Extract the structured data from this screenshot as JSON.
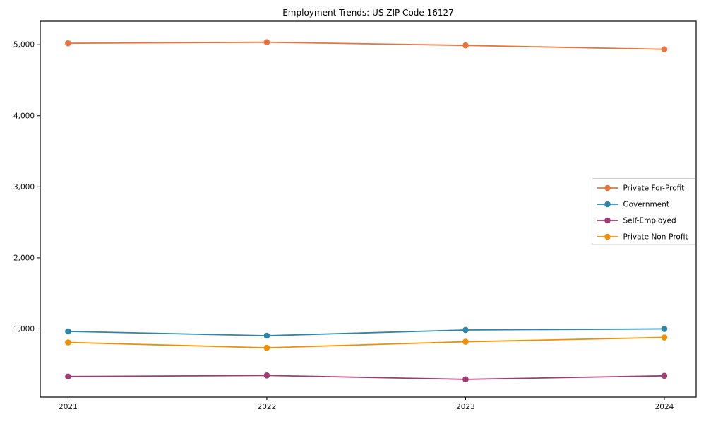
{
  "chart_data": {
    "type": "line",
    "title": "Employment Trends: US ZIP Code 16127",
    "x": [
      2021,
      2022,
      2023,
      2024
    ],
    "x_tick_labels": [
      "2021",
      "2022",
      "2023",
      "2024"
    ],
    "y_ticks": [
      1000,
      2000,
      3000,
      4000,
      5000
    ],
    "y_tick_labels": [
      "1,000",
      "2,000",
      "3,000",
      "4,000",
      "5,000"
    ],
    "xlim": [
      2020.86,
      2024.16
    ],
    "ylim": [
      40,
      5330
    ],
    "grid": false,
    "legend_position": "center right",
    "series": [
      {
        "name": "Private For-Profit",
        "color": "#E8743D",
        "values": [
          5020,
          5035,
          4990,
          4935
        ]
      },
      {
        "name": "Government",
        "color": "#2E86AB",
        "values": [
          965,
          905,
          985,
          1000
        ]
      },
      {
        "name": "Self-Employed",
        "color": "#A23B72",
        "values": [
          330,
          345,
          290,
          340
        ]
      },
      {
        "name": "Private Non-Profit",
        "color": "#F18F01",
        "values": [
          810,
          735,
          820,
          880
        ]
      }
    ],
    "axis_color": "#000000",
    "tick_label_color": "#111111",
    "legend_border_color": "#cccccc",
    "legend_background": "#ffffff"
  }
}
